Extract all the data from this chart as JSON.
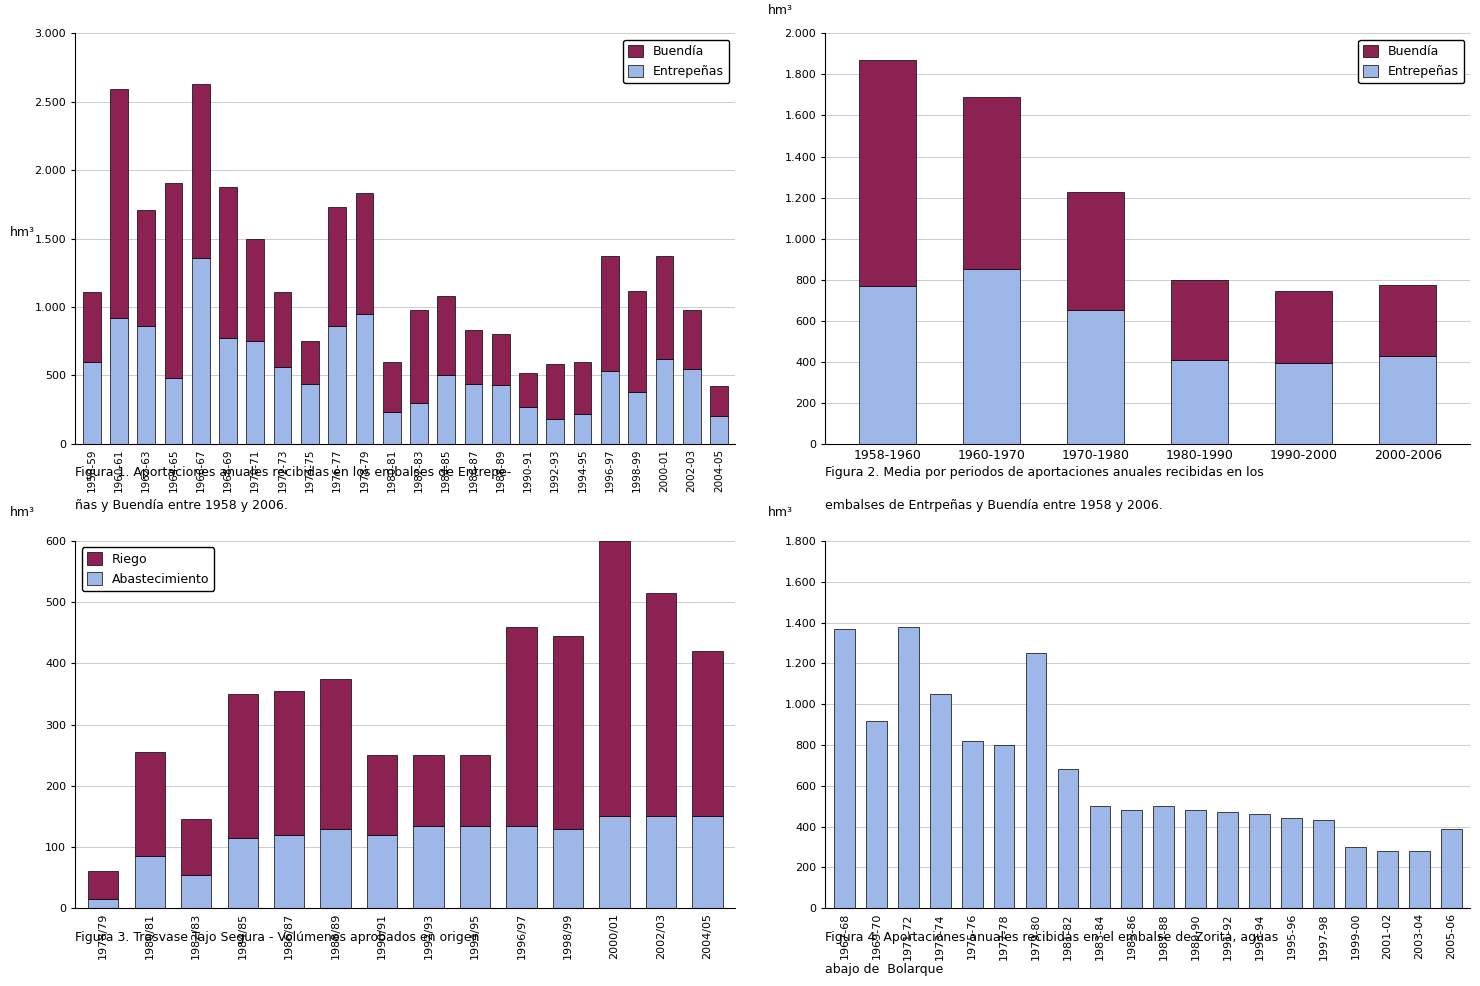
{
  "fig1": {
    "categories": [
      "1958-59",
      "1960-61",
      "1962-63",
      "1964-65",
      "1966-67",
      "1968-69",
      "1970-71",
      "1972-73",
      "1974-75",
      "1976-77",
      "1978-79",
      "1980-81",
      "1982-83",
      "1984-85",
      "1986-87",
      "1988-89",
      "1990-91",
      "1992-93",
      "1994-95",
      "1996-97",
      "1998-99",
      "2000-01",
      "2002-03",
      "2004-05"
    ],
    "entrepenas": [
      600,
      920,
      860,
      480,
      1360,
      770,
      750,
      560,
      440,
      860,
      950,
      230,
      300,
      500,
      440,
      430,
      270,
      180,
      220,
      530,
      380,
      620,
      550,
      200
    ],
    "buendia": [
      510,
      1670,
      850,
      1430,
      1270,
      1110,
      750,
      550,
      310,
      870,
      880,
      370,
      680,
      580,
      390,
      370,
      250,
      400,
      380,
      840,
      740,
      750,
      430,
      220
    ],
    "ylim": [
      0,
      3000
    ],
    "yticks": [
      0,
      500,
      1000,
      1500,
      2000,
      2500,
      3000
    ],
    "ytick_labels": [
      "0",
      "500",
      "1.000",
      "1.500",
      "2.000",
      "2.500",
      "3.000"
    ],
    "ylabel": "hm³",
    "caption1": "Figura 1. Aportaciones anuales recibidas en los embalses de Entrepe-",
    "caption2": "ñas y Buendía entre 1958 y 2006."
  },
  "fig2": {
    "categories": [
      "1958-1960",
      "1960-1970",
      "1970-1980",
      "1980-1990",
      "1990-2000",
      "2000-2006"
    ],
    "entrepenas": [
      770,
      850,
      650,
      410,
      395,
      430
    ],
    "buendia": [
      1100,
      840,
      575,
      390,
      350,
      345
    ],
    "ylim": [
      0,
      2000
    ],
    "yticks": [
      0,
      200,
      400,
      600,
      800,
      1000,
      1200,
      1400,
      1600,
      1800,
      2000
    ],
    "ytick_labels": [
      "0",
      "200",
      "400",
      "600",
      "800",
      "1.000",
      "1.200",
      "1.400",
      "1.600",
      "1.800",
      "2.000"
    ],
    "ylabel": "hm³",
    "caption1": "Figura 2. Media por periodos de aportaciones anuales recibidas en los",
    "caption2": "embalses de Entrpeñas y Buendía entre 1958 y 2006."
  },
  "fig3": {
    "categories": [
      "1978/79",
      "1980/81",
      "1982/83",
      "1984/85",
      "1986/87",
      "1988/89",
      "1990/91",
      "1992/93",
      "1994/95",
      "1996/97",
      "1998/99",
      "2000/01",
      "2002/03",
      "2004/05"
    ],
    "abastecimiento": [
      15,
      85,
      55,
      115,
      120,
      130,
      120,
      135,
      135,
      135,
      130,
      150,
      150,
      150
    ],
    "riego": [
      45,
      170,
      90,
      235,
      235,
      245,
      130,
      115,
      115,
      325,
      315,
      450,
      365,
      270
    ],
    "ylim": [
      0,
      600
    ],
    "yticks": [
      0,
      100,
      200,
      300,
      400,
      500,
      600
    ],
    "ytick_labels": [
      "0",
      "100",
      "200",
      "300",
      "400",
      "500",
      "600"
    ],
    "ylabel": "hm³",
    "caption": "Figura 3. Trasvase Tajo Segura - Volúmenes aprobados en origen"
  },
  "fig4": {
    "categories": [
      "1967-68",
      "1969-70",
      "1971-72",
      "1973-74",
      "1975-76",
      "1977-78",
      "1979-80",
      "1981-82",
      "1983-84",
      "1985-86",
      "1987-88",
      "1989-90",
      "1991-92",
      "1993-94",
      "1995-96",
      "1997-98",
      "1999-00",
      "2001-02",
      "2003-04",
      "2005-06"
    ],
    "values": [
      1370,
      920,
      1380,
      1050,
      820,
      800,
      1250,
      680,
      500,
      480,
      500,
      480,
      470,
      460,
      440,
      430,
      300,
      280,
      280,
      390
    ],
    "ylim": [
      0,
      1800
    ],
    "yticks": [
      0,
      200,
      400,
      600,
      800,
      1000,
      1200,
      1400,
      1600,
      1800
    ],
    "ytick_labels": [
      "0",
      "200",
      "400",
      "600",
      "800",
      "1.000",
      "1.200",
      "1.400",
      "1.600",
      "1.800"
    ],
    "ylabel": "hm³",
    "caption1": "Figura 4. Aportaciones anuales recibidas en el embalse de Zorita, aguas",
    "caption2": "abajo de  Bolarque"
  },
  "color_entrepenas": "#9DB8E8",
  "color_buendia": "#8B2252",
  "color_riego": "#8B2252",
  "color_abastecimiento": "#9DB8E8",
  "color_zorita": "#9DB8E8",
  "background": "#FFFFFF",
  "grid_color": "#CCCCCC"
}
